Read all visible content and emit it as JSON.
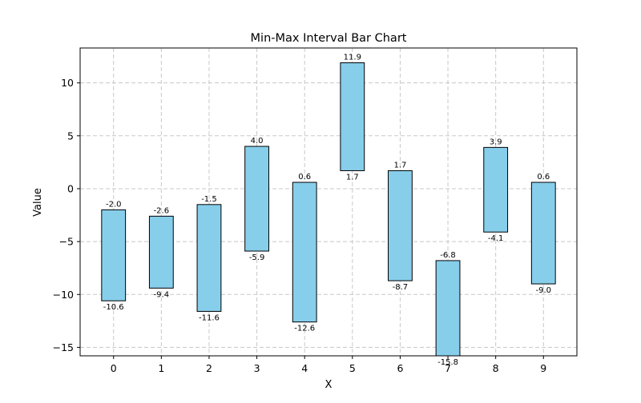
{
  "chart_data": {
    "type": "bar",
    "subtype": "floating-interval",
    "title": "Min-Max Interval Bar Chart",
    "xlabel": "X",
    "ylabel": "Value",
    "categories": [
      "0",
      "1",
      "2",
      "3",
      "4",
      "5",
      "6",
      "7",
      "8",
      "9"
    ],
    "x": [
      0,
      1,
      2,
      3,
      4,
      5,
      6,
      7,
      8,
      9
    ],
    "min": [
      -10.6,
      -9.4,
      -11.6,
      -5.9,
      -12.6,
      1.7,
      -8.7,
      -15.8,
      -4.1,
      -9.0
    ],
    "max": [
      -2.0,
      -2.6,
      -1.5,
      4.0,
      0.6,
      11.9,
      1.7,
      -6.8,
      3.9,
      0.6
    ],
    "min_labels": [
      "-10.6",
      "-9.4",
      "-11.6",
      "-5.9",
      "-12.6",
      "1.7",
      "-8.7",
      "-15.8",
      "-4.1",
      "-9.0"
    ],
    "max_labels": [
      "-2.0",
      "-2.6",
      "-1.5",
      "4.0",
      "0.6",
      "11.9",
      "1.7",
      "-6.8",
      "3.9",
      "0.6"
    ],
    "xlim": [
      -0.7,
      9.7
    ],
    "ylim": [
      -15.8,
      13.3
    ],
    "xticks": [
      0,
      1,
      2,
      3,
      4,
      5,
      6,
      7,
      8,
      9
    ],
    "xtick_labels": [
      "0",
      "1",
      "2",
      "3",
      "4",
      "5",
      "6",
      "7",
      "8",
      "9"
    ],
    "yticks": [
      -15,
      -10,
      -5,
      0,
      5,
      10
    ],
    "ytick_labels": [
      "−15",
      "−10",
      "−5",
      "0",
      "5",
      "10"
    ],
    "grid": true,
    "bar_color": "#87ceeb",
    "edge_color": "#000000",
    "grid_color": "#c8c8c8"
  }
}
